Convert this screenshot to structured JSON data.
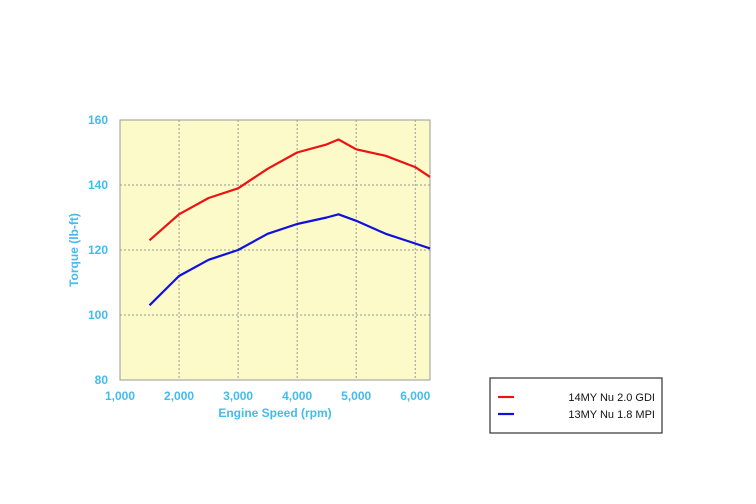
{
  "chart_data": {
    "type": "line",
    "title": "",
    "xlabel": "Engine Speed (rpm)",
    "ylabel": "Torque (lb-ft)",
    "xlim": [
      1000,
      6250
    ],
    "ylim": [
      80,
      160
    ],
    "xticks": [
      1000,
      2000,
      3000,
      4000,
      5000,
      6000
    ],
    "xtick_labels": [
      "1,000",
      "2,000",
      "3,000",
      "4,000",
      "5,000",
      "6,000"
    ],
    "yticks": [
      80,
      100,
      120,
      140,
      160
    ],
    "ytick_labels": [
      "80",
      "100",
      "120",
      "140",
      "160"
    ],
    "grid": true,
    "legend_position": "bottom-right",
    "series": [
      {
        "name": "14MY Nu 2.0 GDI",
        "color": "#ee1111",
        "x": [
          1500,
          2000,
          2500,
          3000,
          3500,
          4000,
          4500,
          4700,
          5000,
          5500,
          6000,
          6250
        ],
        "y": [
          123,
          131,
          136,
          139,
          145,
          150,
          152.5,
          154,
          151,
          149,
          145.5,
          142.5
        ]
      },
      {
        "name": "13MY Nu 1.8 MPI",
        "color": "#1111dd",
        "x": [
          1500,
          2000,
          2500,
          3000,
          3500,
          4000,
          4500,
          4700,
          5000,
          5500,
          6000,
          6250
        ],
        "y": [
          103,
          112,
          117,
          120,
          125,
          128,
          130,
          131,
          129,
          125,
          122,
          120.5
        ]
      }
    ],
    "colors": {
      "plot_background": "#fcfac8",
      "axis_text": "#44bbee",
      "grid": "#999999"
    }
  }
}
